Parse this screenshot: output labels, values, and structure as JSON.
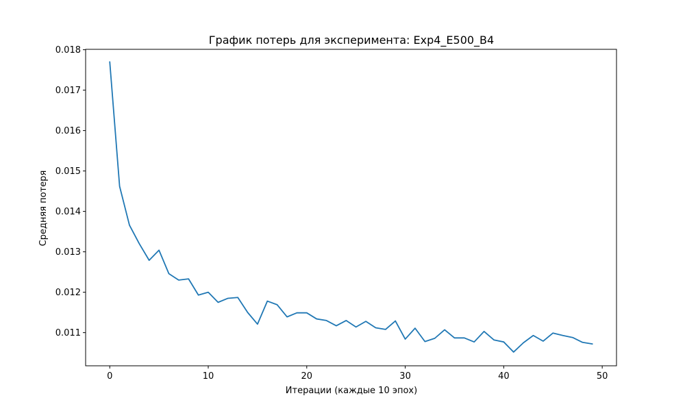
{
  "chart_data": {
    "type": "line",
    "title": "График потерь для эксперимента: Exp4_E500_B4",
    "xlabel": "Итерации (каждые 10 эпох)",
    "ylabel": "Средняя потеря",
    "xlim": [
      -2.45,
      51.45
    ],
    "ylim": [
      0.01018,
      0.01801
    ],
    "x_ticks": [
      0,
      10,
      20,
      30,
      40,
      50
    ],
    "x_tick_labels": [
      "0",
      "10",
      "20",
      "30",
      "40",
      "50"
    ],
    "y_ticks": [
      0.011,
      0.012,
      0.013,
      0.014,
      0.015,
      0.016,
      0.017,
      0.018
    ],
    "y_tick_labels": [
      "0.011",
      "0.012",
      "0.013",
      "0.014",
      "0.015",
      "0.016",
      "0.017",
      "0.018"
    ],
    "grid": false,
    "line_color": "#1f77b4",
    "series": [
      {
        "x": [
          0,
          1,
          2,
          3,
          4,
          5,
          6,
          7,
          8,
          9,
          10,
          11,
          12,
          13,
          14,
          15,
          16,
          17,
          18,
          19,
          20,
          21,
          22,
          23,
          24,
          25,
          26,
          27,
          28,
          29,
          30,
          31,
          32,
          33,
          34,
          35,
          36,
          37,
          38,
          39,
          40,
          41,
          42,
          43,
          44,
          45,
          46,
          47,
          48,
          49
        ],
        "values": [
          0.0177,
          0.01462,
          0.01366,
          0.0132,
          0.01279,
          0.01304,
          0.01246,
          0.0123,
          0.01233,
          0.01193,
          0.012,
          0.01175,
          0.01185,
          0.01187,
          0.0115,
          0.01121,
          0.01178,
          0.01169,
          0.01139,
          0.01149,
          0.01149,
          0.01134,
          0.0113,
          0.01117,
          0.0113,
          0.01114,
          0.01128,
          0.01112,
          0.01108,
          0.01129,
          0.01084,
          0.01111,
          0.01078,
          0.01086,
          0.01107,
          0.01087,
          0.01087,
          0.01077,
          0.01103,
          0.01082,
          0.01077,
          0.01052,
          0.01075,
          0.01093,
          0.01079,
          0.01099,
          0.01093,
          0.01088,
          0.01076,
          0.01072
        ]
      }
    ]
  }
}
